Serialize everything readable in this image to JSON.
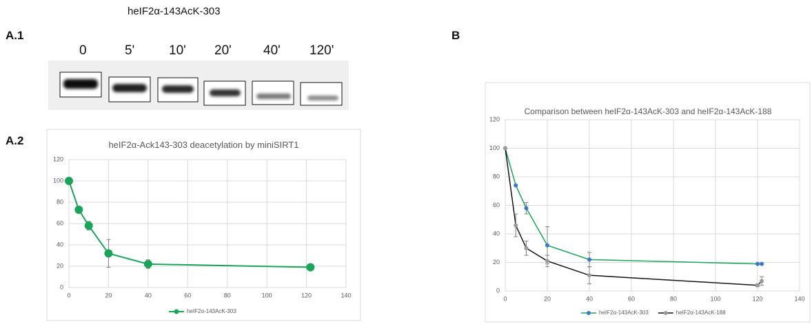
{
  "blot": {
    "title": "heIF2α-143AcK-303",
    "lanes": [
      "0",
      "5'",
      "10'",
      "20'",
      "40'",
      "120'"
    ]
  },
  "panels": [
    "A.1",
    "A.2",
    "B"
  ],
  "chart_data": [
    {
      "type": "line",
      "title": "heIF2α-Ack143-303 deacetylation by miniSIRT1",
      "xlim": [
        0,
        140
      ],
      "xticks": [
        0,
        20,
        40,
        60,
        80,
        100,
        120,
        140
      ],
      "ylim": [
        0,
        120
      ],
      "yticks": [
        0,
        20,
        40,
        60,
        80,
        100,
        120
      ],
      "grid": true,
      "legend": "bottom",
      "series": [
        {
          "name": "heIF2α-143AcK-303",
          "color": "#1aa35a",
          "marker_color": "#1aa35a",
          "x": [
            0,
            5,
            10,
            20,
            40,
            122
          ],
          "values": [
            100,
            73,
            58,
            32,
            22,
            19
          ],
          "errors": [
            0,
            2,
            4,
            13,
            4,
            1
          ]
        }
      ]
    },
    {
      "type": "line",
      "title": "Comparison between heIF2α-143AcK-303 and heIF2α-143AcK-188",
      "xlim": [
        0,
        140
      ],
      "xticks": [
        0,
        20,
        40,
        60,
        80,
        100,
        120,
        140
      ],
      "ylim": [
        0,
        120
      ],
      "yticks": [
        0,
        20,
        40,
        60,
        80,
        100,
        120
      ],
      "grid": true,
      "legend": "bottom",
      "series": [
        {
          "name": "heIF2α-143AcK-303",
          "color": "#1aa35a",
          "marker_color": "#3a78c2",
          "x": [
            0,
            5,
            10,
            20,
            40,
            120,
            122
          ],
          "values": [
            100,
            74,
            58,
            32,
            22,
            19,
            19
          ],
          "errors": [
            0,
            0,
            4,
            13,
            5,
            0,
            0
          ]
        },
        {
          "name": "heIF2α-143AcK-188",
          "color": "#111111",
          "marker_color": "#9a9a9a",
          "x": [
            0,
            5,
            10,
            20,
            40,
            120,
            122
          ],
          "values": [
            100,
            46,
            30,
            21,
            11,
            4,
            7
          ],
          "errors": [
            0,
            8,
            5,
            4,
            6,
            1,
            3
          ]
        }
      ]
    }
  ]
}
